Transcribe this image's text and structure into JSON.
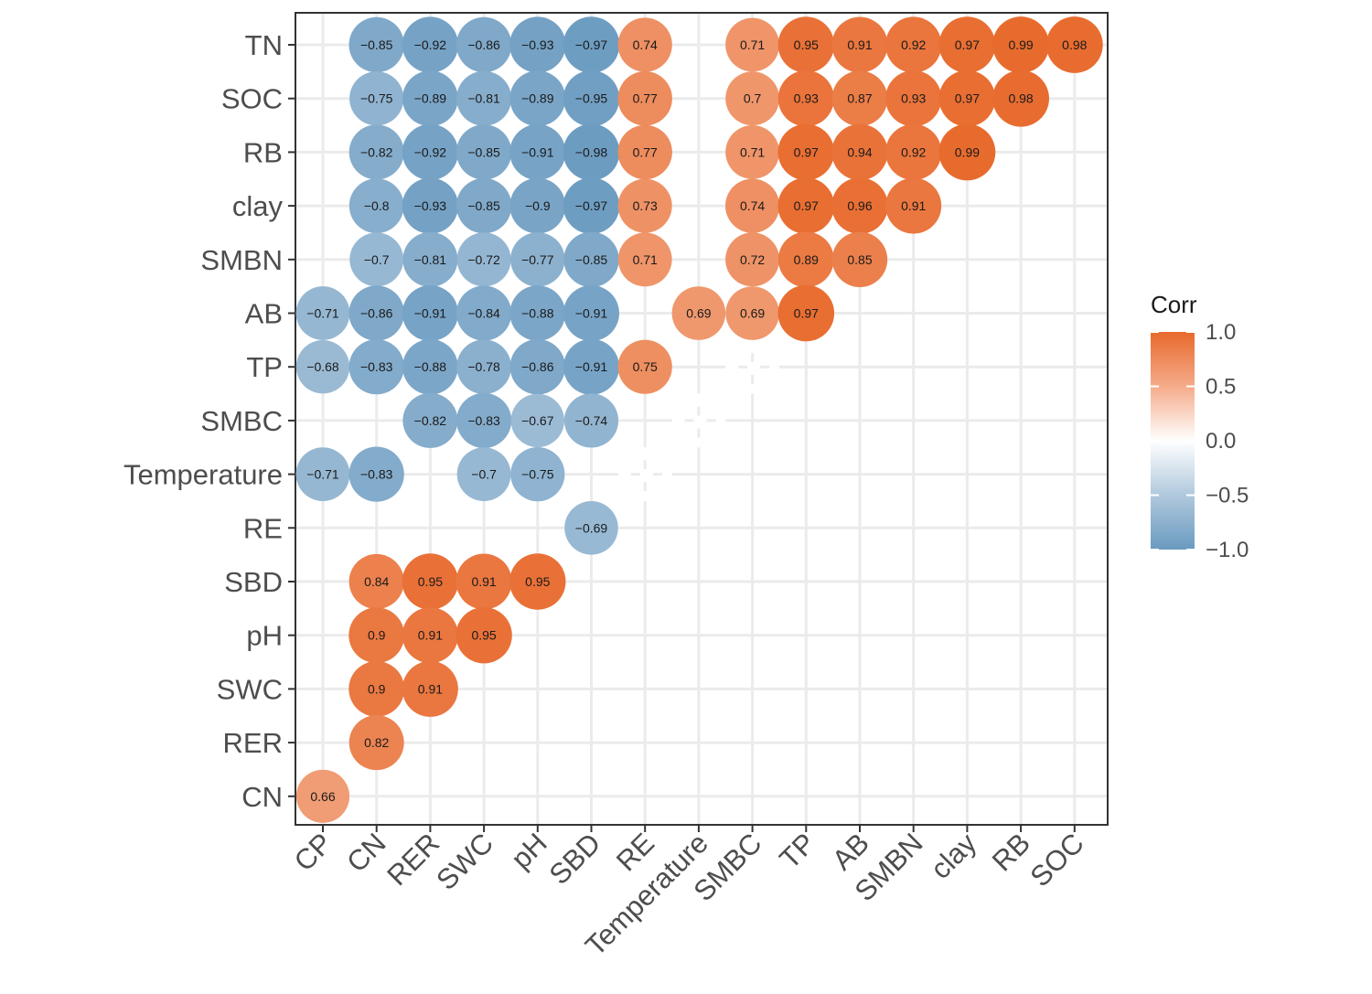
{
  "chart_data": {
    "type": "heatmap",
    "style": "circle correlation matrix (lower/upper triangle)",
    "x_categories": [
      "CP",
      "CN",
      "RER",
      "SWC",
      "pH",
      "SBD",
      "RE",
      "Temperature",
      "SMBC",
      "TP",
      "AB",
      "SMBN",
      "clay",
      "RB",
      "SOC"
    ],
    "y_categories": [
      "TN",
      "SOC",
      "RB",
      "clay",
      "SMBN",
      "AB",
      "TP",
      "SMBC",
      "Temperature",
      "RE",
      "SBD",
      "pH",
      "SWC",
      "RER",
      "CN"
    ],
    "cells": [
      {
        "y": "TN",
        "x": "CN",
        "value": -0.85,
        "label": "-0.85"
      },
      {
        "y": "TN",
        "x": "RER",
        "value": -0.92,
        "label": "-0.92"
      },
      {
        "y": "TN",
        "x": "SWC",
        "value": -0.86,
        "label": "-0.86"
      },
      {
        "y": "TN",
        "x": "pH",
        "value": -0.93,
        "label": "-0.93"
      },
      {
        "y": "TN",
        "x": "SBD",
        "value": -0.97,
        "label": "-0.97"
      },
      {
        "y": "TN",
        "x": "RE",
        "value": 0.74,
        "label": "0.74"
      },
      {
        "y": "TN",
        "x": "SMBC",
        "value": 0.71,
        "label": "0.71"
      },
      {
        "y": "TN",
        "x": "TP",
        "value": 0.95,
        "label": "0.95"
      },
      {
        "y": "TN",
        "x": "AB",
        "value": 0.91,
        "label": "0.91"
      },
      {
        "y": "TN",
        "x": "SMBN",
        "value": 0.92,
        "label": "0.92"
      },
      {
        "y": "TN",
        "x": "clay",
        "value": 0.97,
        "label": "0.97"
      },
      {
        "y": "TN",
        "x": "RB",
        "value": 0.99,
        "label": "0.99"
      },
      {
        "y": "TN",
        "x": "SOC",
        "value": 0.98,
        "label": "0.98"
      },
      {
        "y": "SOC",
        "x": "CN",
        "value": -0.75,
        "label": "-0.75"
      },
      {
        "y": "SOC",
        "x": "RER",
        "value": -0.89,
        "label": "-0.89"
      },
      {
        "y": "SOC",
        "x": "SWC",
        "value": -0.81,
        "label": "-0.81"
      },
      {
        "y": "SOC",
        "x": "pH",
        "value": -0.89,
        "label": "-0.89"
      },
      {
        "y": "SOC",
        "x": "SBD",
        "value": -0.95,
        "label": "-0.95"
      },
      {
        "y": "SOC",
        "x": "RE",
        "value": 0.77,
        "label": "0.77"
      },
      {
        "y": "SOC",
        "x": "SMBC",
        "value": 0.7,
        "label": "0.7"
      },
      {
        "y": "SOC",
        "x": "TP",
        "value": 0.93,
        "label": "0.93"
      },
      {
        "y": "SOC",
        "x": "AB",
        "value": 0.87,
        "label": "0.87"
      },
      {
        "y": "SOC",
        "x": "SMBN",
        "value": 0.93,
        "label": "0.93"
      },
      {
        "y": "SOC",
        "x": "clay",
        "value": 0.97,
        "label": "0.97"
      },
      {
        "y": "SOC",
        "x": "RB",
        "value": 0.98,
        "label": "0.98"
      },
      {
        "y": "RB",
        "x": "CN",
        "value": -0.82,
        "label": "-0.82"
      },
      {
        "y": "RB",
        "x": "RER",
        "value": -0.92,
        "label": "-0.92"
      },
      {
        "y": "RB",
        "x": "SWC",
        "value": -0.85,
        "label": "-0.85"
      },
      {
        "y": "RB",
        "x": "pH",
        "value": -0.91,
        "label": "-0.91"
      },
      {
        "y": "RB",
        "x": "SBD",
        "value": -0.98,
        "label": "-0.98"
      },
      {
        "y": "RB",
        "x": "RE",
        "value": 0.77,
        "label": "0.77"
      },
      {
        "y": "RB",
        "x": "SMBC",
        "value": 0.71,
        "label": "0.71"
      },
      {
        "y": "RB",
        "x": "TP",
        "value": 0.97,
        "label": "0.97"
      },
      {
        "y": "RB",
        "x": "AB",
        "value": 0.94,
        "label": "0.94"
      },
      {
        "y": "RB",
        "x": "SMBN",
        "value": 0.92,
        "label": "0.92"
      },
      {
        "y": "RB",
        "x": "clay",
        "value": 0.99,
        "label": "0.99"
      },
      {
        "y": "clay",
        "x": "CN",
        "value": -0.8,
        "label": "-0.8"
      },
      {
        "y": "clay",
        "x": "RER",
        "value": -0.93,
        "label": "-0.93"
      },
      {
        "y": "clay",
        "x": "SWC",
        "value": -0.85,
        "label": "-0.85"
      },
      {
        "y": "clay",
        "x": "pH",
        "value": -0.9,
        "label": "-0.9"
      },
      {
        "y": "clay",
        "x": "SBD",
        "value": -0.97,
        "label": "-0.97"
      },
      {
        "y": "clay",
        "x": "RE",
        "value": 0.73,
        "label": "0.73"
      },
      {
        "y": "clay",
        "x": "SMBC",
        "value": 0.74,
        "label": "0.74"
      },
      {
        "y": "clay",
        "x": "TP",
        "value": 0.97,
        "label": "0.97"
      },
      {
        "y": "clay",
        "x": "AB",
        "value": 0.96,
        "label": "0.96"
      },
      {
        "y": "clay",
        "x": "SMBN",
        "value": 0.91,
        "label": "0.91"
      },
      {
        "y": "SMBN",
        "x": "CN",
        "value": -0.7,
        "label": "-0.7"
      },
      {
        "y": "SMBN",
        "x": "RER",
        "value": -0.81,
        "label": "-0.81"
      },
      {
        "y": "SMBN",
        "x": "SWC",
        "value": -0.72,
        "label": "-0.72"
      },
      {
        "y": "SMBN",
        "x": "pH",
        "value": -0.77,
        "label": "-0.77"
      },
      {
        "y": "SMBN",
        "x": "SBD",
        "value": -0.85,
        "label": "-0.85"
      },
      {
        "y": "SMBN",
        "x": "RE",
        "value": 0.71,
        "label": "0.71"
      },
      {
        "y": "SMBN",
        "x": "SMBC",
        "value": 0.72,
        "label": "0.72"
      },
      {
        "y": "SMBN",
        "x": "TP",
        "value": 0.89,
        "label": "0.89"
      },
      {
        "y": "SMBN",
        "x": "AB",
        "value": 0.85,
        "label": "0.85"
      },
      {
        "y": "AB",
        "x": "CP",
        "value": -0.71,
        "label": "-0.71"
      },
      {
        "y": "AB",
        "x": "CN",
        "value": -0.86,
        "label": "-0.86"
      },
      {
        "y": "AB",
        "x": "RER",
        "value": -0.91,
        "label": "-0.91"
      },
      {
        "y": "AB",
        "x": "SWC",
        "value": -0.84,
        "label": "-0.84"
      },
      {
        "y": "AB",
        "x": "pH",
        "value": -0.88,
        "label": "-0.88"
      },
      {
        "y": "AB",
        "x": "SBD",
        "value": -0.91,
        "label": "-0.91"
      },
      {
        "y": "AB",
        "x": "Temperature",
        "value": 0.69,
        "label": "0.69"
      },
      {
        "y": "AB",
        "x": "SMBC",
        "value": 0.69,
        "label": "0.69"
      },
      {
        "y": "AB",
        "x": "TP",
        "value": 0.97,
        "label": "0.97"
      },
      {
        "y": "TP",
        "x": "CP",
        "value": -0.68,
        "label": "-0.68"
      },
      {
        "y": "TP",
        "x": "CN",
        "value": -0.83,
        "label": "-0.83"
      },
      {
        "y": "TP",
        "x": "RER",
        "value": -0.88,
        "label": "-0.88"
      },
      {
        "y": "TP",
        "x": "SWC",
        "value": -0.78,
        "label": "-0.78"
      },
      {
        "y": "TP",
        "x": "pH",
        "value": -0.86,
        "label": "-0.86"
      },
      {
        "y": "TP",
        "x": "SBD",
        "value": -0.91,
        "label": "-0.91"
      },
      {
        "y": "TP",
        "x": "RE",
        "value": 0.75,
        "label": "0.75"
      },
      {
        "y": "SMBC",
        "x": "RER",
        "value": -0.82,
        "label": "-0.82"
      },
      {
        "y": "SMBC",
        "x": "SWC",
        "value": -0.83,
        "label": "-0.83"
      },
      {
        "y": "SMBC",
        "x": "pH",
        "value": -0.67,
        "label": "-0.67"
      },
      {
        "y": "SMBC",
        "x": "SBD",
        "value": -0.74,
        "label": "-0.74"
      },
      {
        "y": "Temperature",
        "x": "CP",
        "value": -0.71,
        "label": "-0.71"
      },
      {
        "y": "Temperature",
        "x": "CN",
        "value": -0.83,
        "label": "-0.83"
      },
      {
        "y": "Temperature",
        "x": "SWC",
        "value": -0.7,
        "label": "-0.7"
      },
      {
        "y": "Temperature",
        "x": "pH",
        "value": -0.75,
        "label": "-0.75"
      },
      {
        "y": "RE",
        "x": "SBD",
        "value": -0.69,
        "label": "-0.69"
      },
      {
        "y": "SBD",
        "x": "CN",
        "value": 0.84,
        "label": "0.84"
      },
      {
        "y": "SBD",
        "x": "RER",
        "value": 0.95,
        "label": "0.95"
      },
      {
        "y": "SBD",
        "x": "SWC",
        "value": 0.91,
        "label": "0.91"
      },
      {
        "y": "SBD",
        "x": "pH",
        "value": 0.95,
        "label": "0.95"
      },
      {
        "y": "pH",
        "x": "CN",
        "value": 0.9,
        "label": "0.9"
      },
      {
        "y": "pH",
        "x": "RER",
        "value": 0.91,
        "label": "0.91"
      },
      {
        "y": "pH",
        "x": "SWC",
        "value": 0.95,
        "label": "0.95"
      },
      {
        "y": "SWC",
        "x": "CN",
        "value": 0.9,
        "label": "0.9"
      },
      {
        "y": "SWC",
        "x": "RER",
        "value": 0.91,
        "label": "0.91"
      },
      {
        "y": "RER",
        "x": "CN",
        "value": 0.82,
        "label": "0.82"
      },
      {
        "y": "CN",
        "x": "CP",
        "value": 0.66,
        "label": "0.66"
      }
    ],
    "color_scale": {
      "low": "#6a9ac0",
      "mid": "#ffffff",
      "high": "#e8692c",
      "range": [
        -1.0,
        1.0
      ]
    },
    "legend": {
      "title": "Corr",
      "ticks": [
        1.0,
        0.5,
        0.0,
        -0.5,
        -1.0
      ],
      "tick_labels": [
        "1.0",
        "0.5",
        "0.0",
        "−0.5",
        "−1.0"
      ],
      "placement": "right"
    },
    "grid": true,
    "panel_border": "#333333",
    "grid_color": "#ebebeb"
  }
}
